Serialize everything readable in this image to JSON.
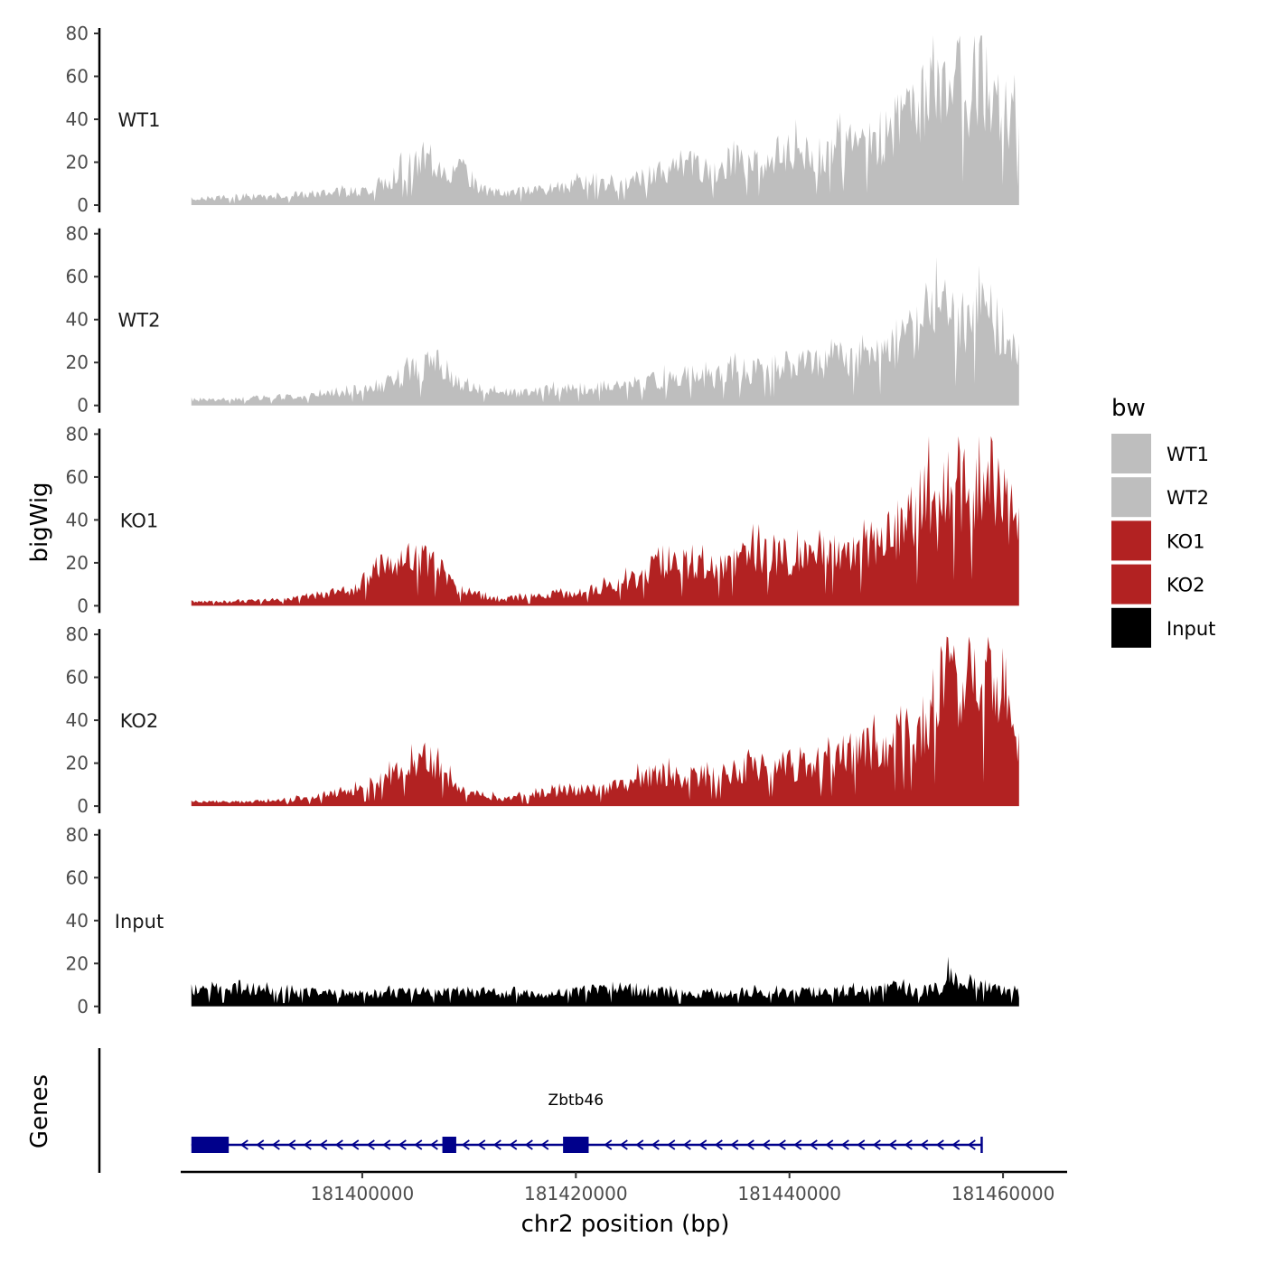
{
  "chart_data": {
    "type": "area",
    "xlabel": "chr2 position (bp)",
    "ylabel": "bigWig",
    "genes_label": "Genes",
    "xlim": [
      181383000,
      181466000
    ],
    "x_ticks": [
      181400000,
      181420000,
      181440000,
      181460000
    ],
    "x_tick_labels": [
      "181400000",
      "181420000",
      "181440000",
      "181460000"
    ],
    "ylim": [
      0,
      80
    ],
    "y_ticks": [
      0,
      20,
      40,
      60,
      80
    ],
    "y_tick_labels": [
      "0",
      "20",
      "40",
      "60",
      "80"
    ],
    "legend": {
      "title": "bw",
      "position": "right",
      "entries": [
        {
          "label": "WT1",
          "color": "#bebebe"
        },
        {
          "label": "WT2",
          "color": "#bebebe"
        },
        {
          "label": "KO1",
          "color": "#b22222"
        },
        {
          "label": "KO2",
          "color": "#b22222"
        },
        {
          "label": "Input",
          "color": "#000000"
        }
      ]
    },
    "region": {
      "start": 181384000,
      "end": 181461500
    },
    "series": [
      {
        "name": "WT1",
        "color": "#bebebe",
        "x": [
          181384000,
          181388000,
          181392000,
          181396000,
          181400000,
          181402000,
          181404500,
          181406500,
          181408500,
          181409500,
          181411000,
          181413000,
          181416000,
          181419000,
          181422000,
          181424000,
          181426000,
          181428000,
          181431000,
          181433000,
          181435000,
          181437000,
          181439000,
          181441000,
          181443000,
          181445000,
          181447000,
          181449000,
          181451000,
          181452500,
          181453500,
          181454500,
          181455500,
          181456500,
          181457500,
          181458500,
          181459500,
          181460500,
          181461500
        ],
        "values": [
          3,
          4,
          4,
          6,
          7,
          10,
          20,
          22,
          16,
          18,
          8,
          6,
          7,
          9,
          12,
          10,
          14,
          16,
          20,
          15,
          22,
          20,
          25,
          28,
          24,
          32,
          28,
          35,
          45,
          50,
          66,
          55,
          62,
          50,
          67,
          60,
          48,
          45,
          44
        ]
      },
      {
        "name": "WT2",
        "color": "#bebebe",
        "x": [
          181384000,
          181388000,
          181392000,
          181396000,
          181399000,
          181402000,
          181404500,
          181406500,
          181408500,
          181410500,
          181413000,
          181416000,
          181419000,
          181422000,
          181424000,
          181426000,
          181428000,
          181431000,
          181433000,
          181435000,
          181437000,
          181439000,
          181441000,
          181443000,
          181445000,
          181447000,
          181449000,
          181450500,
          181452000,
          181453500,
          181454500,
          181455500,
          181456500,
          181457500,
          181458500,
          181459500,
          181460500,
          181461500
        ],
        "values": [
          3,
          3,
          4,
          5,
          8,
          10,
          17,
          20,
          12,
          8,
          6,
          7,
          8,
          9,
          12,
          11,
          13,
          15,
          14,
          17,
          18,
          20,
          22,
          20,
          24,
          22,
          26,
          32,
          40,
          48,
          52,
          44,
          40,
          52,
          46,
          40,
          36,
          30
        ]
      },
      {
        "name": "KO1",
        "color": "#b22222",
        "x": [
          181384000,
          181388000,
          181392000,
          181395000,
          181398000,
          181400000,
          181402000,
          181404000,
          181406000,
          181407500,
          181409000,
          181411000,
          181413000,
          181416000,
          181419000,
          181422000,
          181424000,
          181426000,
          181428000,
          181431000,
          181433000,
          181435000,
          181437000,
          181439000,
          181441000,
          181443000,
          181445000,
          181447000,
          181449000,
          181450500,
          181452000,
          181453000,
          181454000,
          181455000,
          181456000,
          181457000,
          181458000,
          181459000,
          181460000,
          181461000,
          181461500
        ],
        "values": [
          2,
          2,
          3,
          5,
          7,
          10,
          22,
          24,
          22,
          18,
          7,
          5,
          3,
          5,
          6,
          8,
          12,
          14,
          22,
          20,
          18,
          22,
          28,
          24,
          26,
          28,
          24,
          30,
          32,
          38,
          50,
          55,
          42,
          60,
          58,
          62,
          56,
          70,
          58,
          42,
          32
        ]
      },
      {
        "name": "KO2",
        "color": "#b22222",
        "x": [
          181384000,
          181388000,
          181392000,
          181395000,
          181398000,
          181400000,
          181402000,
          181404000,
          181406000,
          181407500,
          181409000,
          181411000,
          181413000,
          181416000,
          181419000,
          181422000,
          181424000,
          181426000,
          181428000,
          181431000,
          181433000,
          181435000,
          181437000,
          181439000,
          181441000,
          181443000,
          181445000,
          181447000,
          181449000,
          181450500,
          181452000,
          181453000,
          181454000,
          181455000,
          181456000,
          181457000,
          181458000,
          181459000,
          181460000,
          181461000,
          181461500
        ],
        "values": [
          2,
          2,
          3,
          4,
          7,
          10,
          14,
          22,
          24,
          18,
          10,
          6,
          4,
          6,
          8,
          8,
          10,
          14,
          16,
          14,
          16,
          18,
          20,
          22,
          20,
          22,
          24,
          28,
          30,
          38,
          34,
          45,
          55,
          74,
          50,
          62,
          52,
          70,
          58,
          40,
          32
        ]
      },
      {
        "name": "Input",
        "color": "#000000",
        "x": [
          181384000,
          181388000,
          181392000,
          181396000,
          181400000,
          181404000,
          181408000,
          181412000,
          181416000,
          181420000,
          181422000,
          181424000,
          181428000,
          181432000,
          181436000,
          181440000,
          181444000,
          181448000,
          181450000,
          181452000,
          181454000,
          181455000,
          181456000,
          181457000,
          181458000,
          181460000,
          181461500
        ],
        "values": [
          8,
          9,
          8,
          7,
          6,
          7,
          8,
          7,
          6,
          7,
          9,
          8,
          7,
          6,
          7,
          7,
          7,
          8,
          10,
          7,
          9,
          18,
          10,
          12,
          10,
          8,
          7
        ]
      }
    ],
    "gene_track": {
      "gene": "Zbtb46",
      "strand": "-",
      "start": 181384000,
      "end": 181458000,
      "exons": [
        [
          181384000,
          181387500
        ],
        [
          181407500,
          181408800
        ],
        [
          181418800,
          181421200
        ]
      ],
      "color": "#00008b"
    }
  }
}
